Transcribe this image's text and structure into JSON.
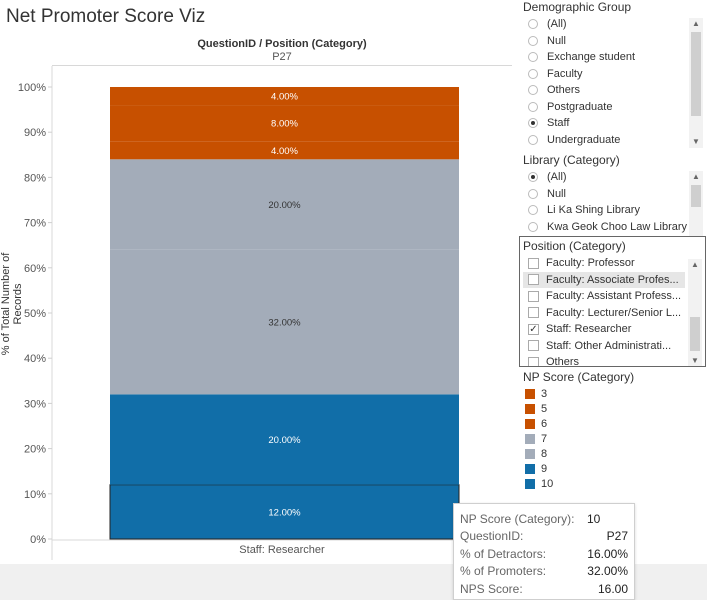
{
  "title": "Net Promoter Score Viz",
  "column_header": {
    "field": "QuestionID  /  Position (Category)",
    "value": "P27"
  },
  "y_axis_title": "% of Total Number of Records",
  "x_axis_category": "Staff: Researcher",
  "colors": {
    "orange": "#c75000",
    "gray": "#a3acb9",
    "blue": "#116ea8"
  },
  "chart_data": {
    "type": "bar",
    "stacked": true,
    "categories": [
      "Staff: Researcher"
    ],
    "series": [
      {
        "name": "10",
        "values": [
          12.0
        ],
        "label": "12.00%",
        "color": "#116ea8",
        "highlighted": true
      },
      {
        "name": "9",
        "values": [
          20.0
        ],
        "label": "20.00%",
        "color": "#116ea8"
      },
      {
        "name": "8",
        "values": [
          32.0
        ],
        "label": "32.00%",
        "color": "#a3acb9"
      },
      {
        "name": "7",
        "values": [
          20.0
        ],
        "label": "20.00%",
        "color": "#a3acb9"
      },
      {
        "name": "6",
        "values": [
          4.0
        ],
        "label": "4.00%",
        "color": "#c75000"
      },
      {
        "name": "5",
        "values": [
          8.0
        ],
        "label": "8.00%",
        "color": "#c75000"
      },
      {
        "name": "3",
        "values": [
          4.0
        ],
        "label": "4.00%",
        "color": "#c75000"
      }
    ],
    "ylim": [
      0,
      100
    ],
    "yticks": [
      "0%",
      "10%",
      "20%",
      "30%",
      "40%",
      "50%",
      "60%",
      "70%",
      "80%",
      "90%",
      "100%"
    ],
    "ylabel": "% of Total Number of Records",
    "xlabel": ""
  },
  "demographic_filter": {
    "title": "Demographic Group",
    "options": [
      {
        "label": "(All)",
        "selected": false
      },
      {
        "label": "Null",
        "selected": false
      },
      {
        "label": "Exchange student",
        "selected": false
      },
      {
        "label": "Faculty",
        "selected": false
      },
      {
        "label": "Others",
        "selected": false
      },
      {
        "label": "Postgraduate",
        "selected": false
      },
      {
        "label": "Staff",
        "selected": true
      },
      {
        "label": "Undergraduate",
        "selected": false
      }
    ]
  },
  "library_filter": {
    "title": "Library (Category)",
    "options": [
      {
        "label": "(All)",
        "selected": true
      },
      {
        "label": "Null",
        "selected": false
      },
      {
        "label": "Li Ka Shing Library",
        "selected": false
      },
      {
        "label": "Kwa Geok Choo Law Library",
        "selected": false
      }
    ]
  },
  "position_filter": {
    "title": "Position (Category)",
    "options": [
      {
        "label": "Faculty: Professor",
        "checked": false
      },
      {
        "label": "Faculty: Associate Profes...",
        "checked": false,
        "hovered": true
      },
      {
        "label": "Faculty: Assistant Profess...",
        "checked": false
      },
      {
        "label": "Faculty: Lecturer/Senior L...",
        "checked": false
      },
      {
        "label": "Staff: Researcher",
        "checked": true
      },
      {
        "label": "Staff: Other Administrati...",
        "checked": false
      },
      {
        "label": "Others",
        "checked": false
      }
    ]
  },
  "np_legend": {
    "title": "NP Score (Category)",
    "items": [
      {
        "label": "3",
        "color": "#c75000"
      },
      {
        "label": "5",
        "color": "#c75000"
      },
      {
        "label": "6",
        "color": "#c75000"
      },
      {
        "label": "7",
        "color": "#a3acb9"
      },
      {
        "label": "8",
        "color": "#a3acb9"
      },
      {
        "label": "9",
        "color": "#116ea8"
      },
      {
        "label": "10",
        "color": "#116ea8"
      }
    ]
  },
  "tooltip": {
    "rows": [
      {
        "key": "NP Score (Category):",
        "value": "10"
      },
      {
        "key": "QuestionID:",
        "value": "P27"
      },
      {
        "key": "% of Detractors:",
        "value": "16.00%"
      },
      {
        "key": "% of Promoters:",
        "value": "32.00%"
      },
      {
        "key": "NPS Score:",
        "value": "16.00"
      }
    ]
  }
}
